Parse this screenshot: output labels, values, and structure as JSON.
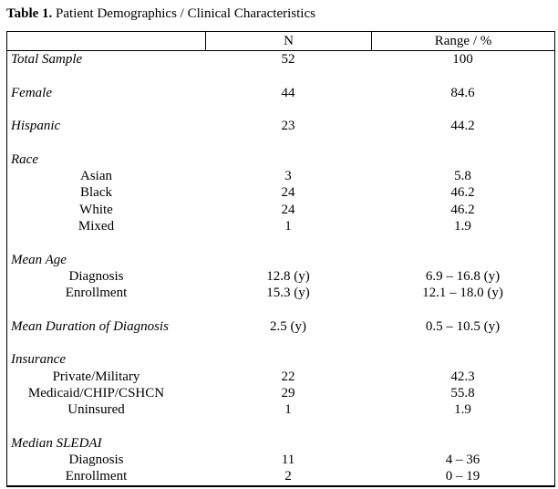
{
  "title": {
    "label": "Table 1.",
    "text": " Patient Demographics / Clinical Characteristics"
  },
  "table": {
    "columns": [
      "",
      "N",
      "Range / %"
    ],
    "rows": [
      {
        "type": "category",
        "label": "Total Sample",
        "n": "52",
        "range": "100"
      },
      {
        "type": "spacer"
      },
      {
        "type": "category",
        "label": "Female",
        "n": "44",
        "range": "84.6"
      },
      {
        "type": "spacer"
      },
      {
        "type": "category",
        "label": "Hispanic",
        "n": "23",
        "range": "44.2"
      },
      {
        "type": "spacer"
      },
      {
        "type": "category",
        "label": "Race",
        "n": "",
        "range": ""
      },
      {
        "type": "sub",
        "label": "Asian",
        "n": "3",
        "range": "5.8"
      },
      {
        "type": "sub",
        "label": "Black",
        "n": "24",
        "range": "46.2"
      },
      {
        "type": "sub",
        "label": "White",
        "n": "24",
        "range": "46.2"
      },
      {
        "type": "sub",
        "label": "Mixed",
        "n": "1",
        "range": "1.9"
      },
      {
        "type": "spacer"
      },
      {
        "type": "category",
        "label": "Mean Age",
        "n": "",
        "range": ""
      },
      {
        "type": "sub",
        "label": "Diagnosis",
        "n": "12.8 (y)",
        "range": "6.9 – 16.8 (y)"
      },
      {
        "type": "sub",
        "label": "Enrollment",
        "n": "15.3 (y)",
        "range": "12.1 – 18.0 (y)"
      },
      {
        "type": "spacer"
      },
      {
        "type": "category",
        "label": "Mean Duration of Diagnosis",
        "n": "2.5 (y)",
        "range": "0.5 – 10.5 (y)"
      },
      {
        "type": "spacer"
      },
      {
        "type": "category",
        "label": "Insurance",
        "n": "",
        "range": ""
      },
      {
        "type": "sub",
        "label": "Private/Military",
        "n": "22",
        "range": "42.3"
      },
      {
        "type": "sub",
        "label": "Medicaid/CHIP/CSHCN",
        "n": "29",
        "range": "55.8"
      },
      {
        "type": "sub",
        "label": "Uninsured",
        "n": "1",
        "range": "1.9"
      },
      {
        "type": "spacer"
      },
      {
        "type": "category",
        "label": "Median SLEDAI",
        "n": "",
        "range": ""
      },
      {
        "type": "sub",
        "label": "Diagnosis",
        "n": "11",
        "range": "4 – 36"
      },
      {
        "type": "sub",
        "label": "Enrollment",
        "n": "2",
        "range": "0 – 19"
      }
    ]
  }
}
